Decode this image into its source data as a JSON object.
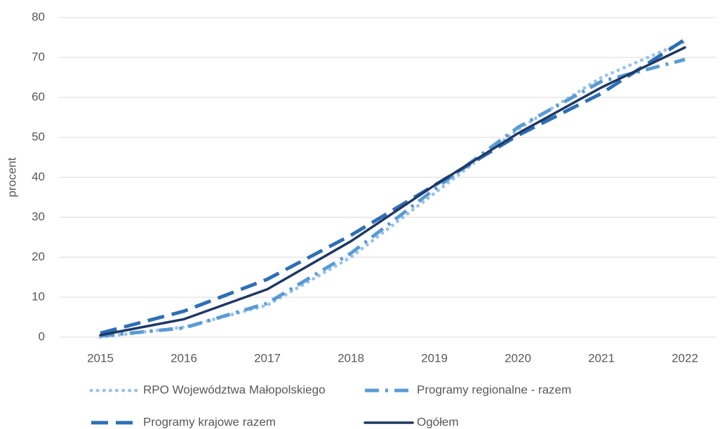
{
  "chart_data": {
    "type": "line",
    "y_label": "procent",
    "categories": [
      "2015",
      "2016",
      "2017",
      "2018",
      "2019",
      "2020",
      "2021",
      "2022"
    ],
    "series": [
      {
        "name": "RPO Województwa Małopolskiego",
        "color": "#9dc3e6",
        "line_style": "dotted",
        "values": [
          0,
          2.5,
          8,
          20,
          36,
          52,
          65,
          74
        ]
      },
      {
        "name": "Programy regionalne - razem",
        "color": "#5b9bd5",
        "line_style": "dashdot",
        "values": [
          0.3,
          2.3,
          8.5,
          21,
          37,
          52.5,
          64,
          69.5
        ]
      },
      {
        "name": "Programy krajowe razem",
        "color": "#2e6fb5",
        "line_style": "dashed",
        "values": [
          1,
          6.5,
          14.5,
          25.5,
          38,
          50.5,
          61,
          74.5
        ]
      },
      {
        "name": "Ogółem",
        "color": "#1f3864",
        "line_style": "solid",
        "values": [
          0.5,
          4.5,
          12,
          24,
          38,
          51,
          62.5,
          72.5
        ]
      }
    ],
    "ylim": [
      0,
      80
    ],
    "yticks": [
      0,
      10,
      20,
      30,
      40,
      50,
      60,
      70,
      80
    ],
    "grid": true
  }
}
